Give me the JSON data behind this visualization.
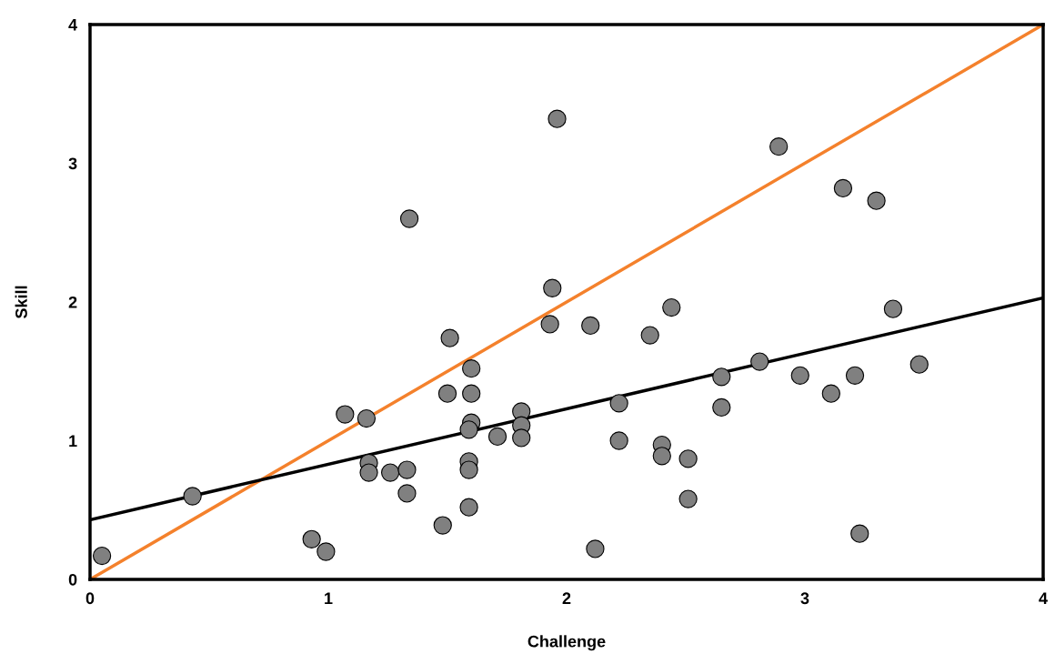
{
  "chart_data": {
    "type": "scatter",
    "xlabel": "Challenge",
    "ylabel": "Skill",
    "xlim": [
      0,
      4
    ],
    "ylim": [
      0,
      4
    ],
    "xticks": [
      0,
      1,
      2,
      3,
      4
    ],
    "yticks": [
      0,
      1,
      2,
      3,
      4
    ],
    "grid": false,
    "marker": "circle",
    "series": [
      {
        "color": "#808080",
        "x": [
          0.05,
          0.43,
          0.93,
          0.99,
          1.07,
          1.16,
          1.17,
          1.17,
          1.26,
          1.33,
          1.33,
          1.34,
          1.48,
          1.51,
          1.5,
          1.6,
          1.6,
          1.6,
          1.59,
          1.59,
          1.59,
          1.59,
          1.71,
          1.81,
          1.81,
          1.81,
          1.96,
          1.94,
          1.93,
          2.1,
          2.12,
          2.22,
          2.22,
          2.35,
          2.4,
          2.4,
          2.44,
          2.51,
          2.51,
          2.65,
          2.65,
          2.81,
          2.89,
          2.98,
          3.11,
          3.16,
          3.21,
          3.23,
          3.3,
          3.37,
          3.48
        ],
        "values": [
          0.17,
          0.6,
          0.29,
          0.2,
          1.19,
          1.16,
          0.84,
          0.77,
          0.77,
          0.79,
          0.62,
          2.6,
          0.39,
          1.74,
          1.34,
          1.52,
          1.34,
          1.13,
          1.08,
          0.85,
          0.79,
          0.52,
          1.03,
          1.21,
          1.11,
          1.02,
          3.32,
          2.1,
          1.84,
          1.83,
          0.22,
          1.27,
          1.0,
          1.76,
          0.97,
          0.89,
          1.96,
          0.87,
          0.58,
          1.24,
          1.46,
          1.57,
          3.12,
          1.47,
          1.34,
          2.82,
          1.47,
          0.33,
          2.73,
          1.95,
          1.55
        ]
      },
      {
        "type": "line",
        "color": "#f4812c",
        "marker": "none",
        "line_style": "solid",
        "x": [
          0,
          4
        ],
        "values": [
          0,
          4
        ]
      },
      {
        "type": "line",
        "color": "#000000",
        "marker": "none",
        "line_style": "solid",
        "x": [
          0,
          4
        ],
        "values": [
          0.43,
          2.03
        ]
      }
    ]
  }
}
